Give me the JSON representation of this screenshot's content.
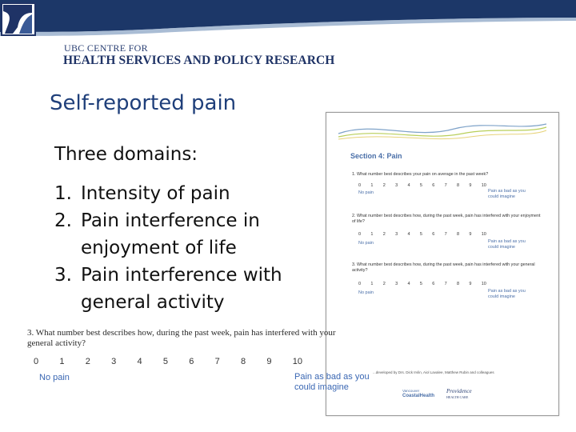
{
  "header": {
    "org_line1": "UBC CENTRE FOR",
    "org_line2": "HEALTH SERVICES AND POLICY RESEARCH",
    "colors": {
      "band": "#1c3768",
      "accent": "#6f8fb8"
    },
    "logo_icon": "ubc-chse-logo"
  },
  "slide": {
    "title": "Self-reported pain",
    "domains_heading": "Three domains:",
    "domains": [
      {
        "num": "1.",
        "text": "Intensity of pain"
      },
      {
        "num": "2.",
        "text": "Pain interference in enjoyment of life"
      },
      {
        "num": "3.",
        "text": "Pain interference with general activity"
      }
    ]
  },
  "form": {
    "section_title": "Section 4: Pain",
    "questions": [
      {
        "text": "1. What number best describes your pain on average in the past week?",
        "scale": [
          "0",
          "1",
          "2",
          "3",
          "4",
          "5",
          "6",
          "7",
          "8",
          "9",
          "10"
        ],
        "low_anchor": "No pain",
        "high_anchor": "Pain as bad as you could imagine"
      },
      {
        "text": "2. What number best describes how, during the past week, pain has interfered with your enjoyment of life?",
        "scale": [
          "0",
          "1",
          "2",
          "3",
          "4",
          "5",
          "6",
          "7",
          "8",
          "9",
          "10"
        ],
        "low_anchor": "No pain",
        "high_anchor": "Pain as bad as you could imagine"
      },
      {
        "text": "3. What number best describes how, during the past week, pain has interfered with your general activity?",
        "scale": [
          "0",
          "1",
          "2",
          "3",
          "4",
          "5",
          "6",
          "7",
          "8",
          "9",
          "10"
        ],
        "low_anchor": "No pain",
        "high_anchor": "Pain as bad as you could imagine"
      }
    ],
    "credit": "...developed by Drs. Dick Irvlin, Aiol Lavalee, Matthew Rubin and colleagues",
    "footer_logo1": [
      "Vancouver",
      "CoastalHealth"
    ],
    "footer_logo2": [
      "Providence",
      "HEALTH CARE"
    ]
  },
  "zoom": {
    "question": "3. What number best describes how, during the past week, pain has interfered with your general activity?",
    "scale": [
      "0",
      "1",
      "2",
      "3",
      "4",
      "5",
      "6",
      "7",
      "8",
      "9",
      "10"
    ],
    "low_anchor": "No pain",
    "high_anchor": "Pain as bad as you could imagine"
  }
}
